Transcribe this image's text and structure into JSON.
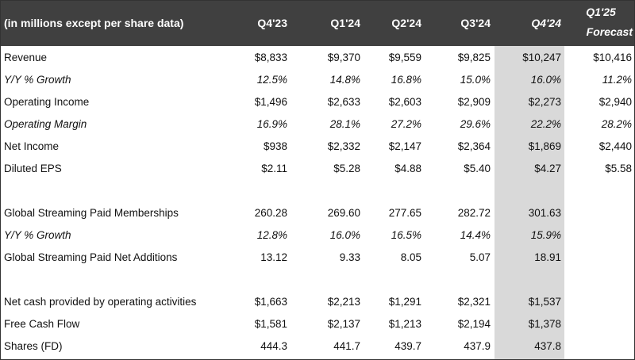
{
  "header": {
    "label": "(in millions except per share data)",
    "columns": [
      "Q4'23",
      "Q1'24",
      "Q2'24",
      "Q3'24",
      "Q4'24"
    ],
    "forecast_quarter": "Q1'25",
    "forecast_label": "Forecast"
  },
  "highlight_color": "#d9d9d9",
  "header_color": "#404040",
  "rows": [
    {
      "label": "Revenue",
      "italic": false,
      "values": [
        "$8,833",
        "$9,370",
        "$9,559",
        "$9,825",
        "$10,247",
        "$10,416"
      ]
    },
    {
      "label": "Y/Y % Growth",
      "italic": true,
      "values": [
        "12.5%",
        "14.8%",
        "16.8%",
        "15.0%",
        "16.0%",
        "11.2%"
      ]
    },
    {
      "label": "Operating Income",
      "italic": false,
      "values": [
        "$1,496",
        "$2,633",
        "$2,603",
        "$2,909",
        "$2,273",
        "$2,940"
      ]
    },
    {
      "label": "Operating Margin",
      "italic": true,
      "values": [
        "16.9%",
        "28.1%",
        "27.2%",
        "29.6%",
        "22.2%",
        "28.2%"
      ]
    },
    {
      "label": "Net Income",
      "italic": false,
      "values": [
        "$938",
        "$2,332",
        "$2,147",
        "$2,364",
        "$1,869",
        "$2,440"
      ]
    },
    {
      "label": "Diluted EPS",
      "italic": false,
      "values": [
        "$2.11",
        "$5.28",
        "$4.88",
        "$5.40",
        "$4.27",
        "$5.58"
      ]
    },
    null,
    {
      "label": "Global Streaming Paid Memberships",
      "italic": false,
      "values": [
        "260.28",
        "269.60",
        "277.65",
        "282.72",
        "301.63",
        ""
      ]
    },
    {
      "label": "Y/Y % Growth",
      "italic": true,
      "values": [
        "12.8%",
        "16.0%",
        "16.5%",
        "14.4%",
        "15.9%",
        ""
      ]
    },
    {
      "label": "Global Streaming Paid Net Additions",
      "italic": false,
      "values": [
        "13.12",
        "9.33",
        "8.05",
        "5.07",
        "18.91",
        ""
      ]
    },
    null,
    {
      "label": "Net cash provided by operating activities",
      "italic": false,
      "values": [
        "$1,663",
        "$2,213",
        "$1,291",
        "$2,321",
        "$1,537",
        ""
      ]
    },
    {
      "label": "Free Cash Flow",
      "italic": false,
      "values": [
        "$1,581",
        "$2,137",
        "$1,213",
        "$2,194",
        "$1,378",
        ""
      ]
    },
    {
      "label": "Shares (FD)",
      "italic": false,
      "values": [
        "444.3",
        "441.7",
        "439.7",
        "437.9",
        "437.8",
        ""
      ]
    }
  ]
}
